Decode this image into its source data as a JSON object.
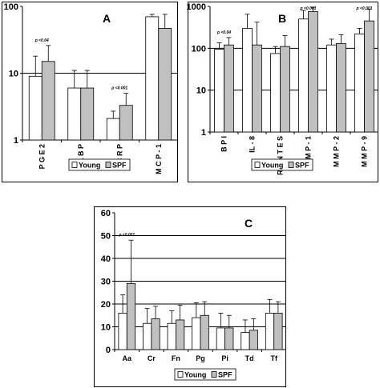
{
  "colors": {
    "young": "#ffffff",
    "spf": "#c0c0c0",
    "axis": "#000000"
  },
  "legend": {
    "young_label": "Young",
    "spf_label": "SPF"
  },
  "chart_data": [
    {
      "id": "A",
      "type": "bar",
      "panel_label": "A",
      "log_scale": true,
      "ylim": [
        1,
        100
      ],
      "ytick_labels": [
        "100",
        "10",
        "1"
      ],
      "reference_lines": [
        10
      ],
      "categories": [
        "PGE2",
        "LBP",
        "CRP",
        "MCP-1"
      ],
      "category_labels": [
        "P G E 2",
        "L B P",
        "C R P",
        "M C P - 1"
      ],
      "series": [
        {
          "name": "Young",
          "values": [
            9,
            6,
            2.1,
            70
          ],
          "errors": [
            18,
            11,
            2.7,
            76
          ]
        },
        {
          "name": "SPF",
          "values": [
            15,
            6,
            3.3,
            47
          ],
          "errors": [
            26,
            11,
            5,
            76
          ]
        }
      ],
      "annotations": [
        {
          "category": "PGE2",
          "text": "p <0.04"
        },
        {
          "category": "CRP",
          "text": "p <0.001"
        }
      ]
    },
    {
      "id": "B",
      "type": "bar",
      "panel_label": "B",
      "log_scale": true,
      "ylim": [
        1,
        1000
      ],
      "ytick_labels": [
        "1000",
        "100",
        "10",
        "1"
      ],
      "reference_lines": [
        10,
        100
      ],
      "categories": [
        "BPI",
        "IL-8",
        "RANTES",
        "MMP-1",
        "MMP-2",
        "MMP-9"
      ],
      "category_labels": [
        "B P I",
        "IL - 8",
        "R A N T E S",
        "M M P - 1",
        "M M P - 2",
        "M M P - 9"
      ],
      "series": [
        {
          "name": "Young",
          "values": [
            95,
            300,
            75,
            500,
            120,
            220
          ],
          "errors": [
            135,
            650,
            110,
            800,
            165,
            300
          ]
        },
        {
          "name": "SPF",
          "values": [
            120,
            120,
            110,
            750,
            130,
            450
          ],
          "errors": [
            180,
            420,
            200,
            950,
            210,
            850
          ]
        }
      ],
      "annotations": [
        {
          "category": "BPI",
          "text": "p <0.04"
        },
        {
          "category": "MMP-1",
          "text": "p <0.001"
        },
        {
          "category": "MMP-9",
          "text": "p <0.001"
        }
      ]
    },
    {
      "id": "C",
      "type": "bar",
      "panel_label": "C",
      "log_scale": false,
      "ylim": [
        0,
        60
      ],
      "ytick_labels": [
        "60",
        "50",
        "40",
        "30",
        "20",
        "10",
        "0"
      ],
      "reference_lines": [
        10,
        20,
        30,
        40,
        50
      ],
      "categories": [
        "Aa",
        "Cr",
        "Fn",
        "Pg",
        "Pi",
        "Td",
        "Tf"
      ],
      "category_labels": [
        "Aa",
        "Cr",
        "Fn",
        "Pg",
        "Pi",
        "Td",
        "Tf"
      ],
      "series": [
        {
          "name": "Young",
          "values": [
            16,
            11.5,
            11.5,
            14,
            9.5,
            7.5,
            16
          ],
          "errors": [
            24,
            18,
            17,
            20.5,
            16,
            13,
            22
          ]
        },
        {
          "name": "SPF",
          "values": [
            29,
            13.5,
            13,
            15,
            9.5,
            8.5,
            16
          ],
          "errors": [
            48,
            19,
            19.5,
            21,
            15,
            13.5,
            21
          ]
        }
      ],
      "annotations": [
        {
          "category": "Aa",
          "text": "p <0.001"
        }
      ]
    }
  ]
}
